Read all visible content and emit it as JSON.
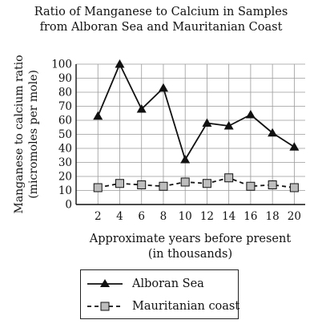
{
  "chart_data": {
    "type": "line",
    "title": [
      "Ratio of Manganese to Calcium in Samples",
      "from Alboran Sea and Mauritanian Coast"
    ],
    "xlabel": [
      "Approximate years before present",
      "(in thousands)"
    ],
    "ylabel": [
      "Manganese to calcium ratio",
      "(micromoles per mole)"
    ],
    "x": [
      2,
      4,
      6,
      8,
      10,
      12,
      14,
      16,
      18,
      20
    ],
    "xticks": [
      "2",
      "4",
      "6",
      "8",
      "10",
      "12",
      "14",
      "16",
      "18",
      "20"
    ],
    "yticks": [
      "0",
      "10",
      "20",
      "30",
      "40",
      "50",
      "60",
      "70",
      "80",
      "90",
      "100"
    ],
    "xlim": [
      0,
      21
    ],
    "ylim": [
      0,
      100
    ],
    "grid": true,
    "legend_position": "bottom",
    "series": [
      {
        "name": "Alboran Sea",
        "values": [
          63,
          100,
          68,
          83,
          32,
          58,
          56,
          64,
          51,
          41
        ],
        "marker": "triangle",
        "line": "solid",
        "color": "#111111"
      },
      {
        "name": "Mauritanian coast",
        "values": [
          12,
          15,
          14,
          13,
          16,
          15,
          19,
          13,
          14,
          12
        ],
        "marker": "square",
        "line": "dashed",
        "color": "#111111",
        "marker_fill": "#bdbdbd"
      }
    ]
  }
}
